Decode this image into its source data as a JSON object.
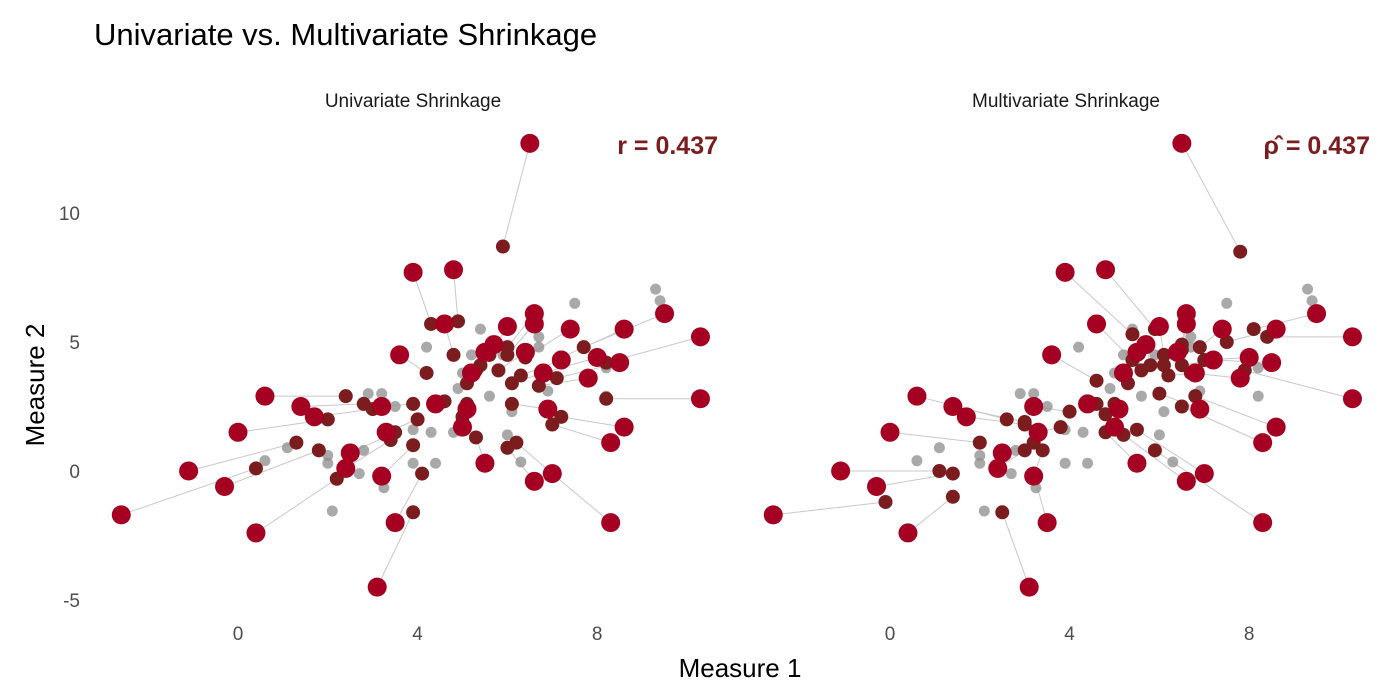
{
  "chart_data": {
    "type": "scatter",
    "title": "Univariate vs. Multivariate Shrinkage",
    "xlabel": "Measure 1",
    "ylabel": "Measure 2",
    "xlim": [
      -2.8,
      10.6
    ],
    "ylim": [
      -5.6,
      13.2
    ],
    "x_ticks": [
      "0",
      "4",
      "8"
    ],
    "x_tick_values": [
      0,
      4,
      8
    ],
    "y_ticks": [
      "10",
      "5",
      "0",
      "-5"
    ],
    "y_tick_values": [
      10,
      5,
      0,
      -5
    ],
    "grid": false,
    "colors": {
      "observed": "#A50021",
      "shrunk": "#7B1C1F",
      "true": "#8C8C8C",
      "segment": "#C8C8C8",
      "annotation": "#7B1C1F"
    },
    "true_points": [
      [
        9.3,
        7.05
      ],
      [
        9.4,
        6.6
      ],
      [
        7.5,
        6.5
      ],
      [
        6.7,
        4.8
      ],
      [
        6.7,
        5.2
      ],
      [
        4.2,
        4.8
      ],
      [
        4.3,
        1.5
      ],
      [
        3.9,
        0.3
      ],
      [
        4.4,
        0.3
      ],
      [
        3.2,
        3.0
      ],
      [
        2.9,
        3.0
      ],
      [
        1.1,
        0.9
      ],
      [
        0.6,
        0.4
      ],
      [
        2.0,
        0.3
      ],
      [
        2.1,
        -1.55
      ],
      [
        3.25,
        -0.65
      ],
      [
        2.7,
        -0.1
      ],
      [
        3.9,
        1.6
      ],
      [
        4.8,
        1.5
      ],
      [
        5.2,
        4.5
      ],
      [
        5.0,
        3.8
      ],
      [
        5.6,
        2.9
      ],
      [
        6.0,
        1.4
      ],
      [
        6.3,
        0.35
      ],
      [
        6.1,
        2.3
      ],
      [
        6.9,
        3.1
      ],
      [
        8.2,
        4.0
      ],
      [
        8.2,
        2.9
      ],
      [
        4.9,
        3.2
      ],
      [
        5.9,
        4.5
      ],
      [
        6.8,
        3.9
      ],
      [
        3.5,
        2.5
      ],
      [
        2.8,
        0.8
      ],
      [
        2.0,
        0.6
      ],
      [
        5.4,
        5.5
      ]
    ],
    "observed": [
      [
        6.5,
        12.7
      ],
      [
        3.9,
        7.7
      ],
      [
        4.8,
        7.8
      ],
      [
        3.6,
        4.5
      ],
      [
        4.6,
        5.7
      ],
      [
        0.6,
        2.9
      ],
      [
        1.4,
        2.5
      ],
      [
        1.7,
        2.1
      ],
      [
        0.0,
        1.5
      ],
      [
        -1.1,
        0.0
      ],
      [
        -0.3,
        -0.6
      ],
      [
        -2.6,
        -1.7
      ],
      [
        0.4,
        -2.4
      ],
      [
        3.1,
        -4.5
      ],
      [
        3.5,
        -2.0
      ],
      [
        3.2,
        -0.2
      ],
      [
        2.4,
        0.1
      ],
      [
        2.5,
        0.7
      ],
      [
        3.2,
        2.5
      ],
      [
        3.3,
        1.5
      ],
      [
        4.4,
        2.6
      ],
      [
        5.1,
        2.4
      ],
      [
        5.0,
        1.7
      ],
      [
        5.5,
        0.3
      ],
      [
        5.2,
        3.8
      ],
      [
        5.5,
        4.6
      ],
      [
        5.7,
        4.9
      ],
      [
        6.0,
        5.6
      ],
      [
        6.6,
        6.1
      ],
      [
        6.6,
        5.7
      ],
      [
        6.4,
        4.6
      ],
      [
        6.8,
        3.8
      ],
      [
        7.2,
        4.3
      ],
      [
        6.9,
        2.4
      ],
      [
        7.0,
        -0.1
      ],
      [
        6.6,
        -0.4
      ],
      [
        7.4,
        5.5
      ],
      [
        7.8,
        3.6
      ],
      [
        8.0,
        4.4
      ],
      [
        8.5,
        4.2
      ],
      [
        8.6,
        5.5
      ],
      [
        9.5,
        6.1
      ],
      [
        10.3,
        5.2
      ],
      [
        10.3,
        2.8
      ],
      [
        8.6,
        1.7
      ],
      [
        8.3,
        1.1
      ],
      [
        8.3,
        -2.0
      ]
    ],
    "panels": [
      {
        "name": "Univariate Shrinkage",
        "annotation": "r = 0.437",
        "shrunk": [
          [
            5.9,
            8.7
          ],
          [
            4.3,
            5.7
          ],
          [
            4.9,
            5.8
          ],
          [
            4.2,
            3.8
          ],
          [
            4.8,
            4.5
          ],
          [
            2.4,
            2.9
          ],
          [
            2.8,
            2.6
          ],
          [
            3.0,
            2.4
          ],
          [
            2.0,
            2.0
          ],
          [
            1.3,
            1.1
          ],
          [
            1.8,
            0.8
          ],
          [
            0.4,
            0.1
          ],
          [
            2.2,
            -0.3
          ],
          [
            3.9,
            -1.6
          ],
          [
            4.1,
            -0.1
          ],
          [
            3.9,
            1.0
          ],
          [
            3.4,
            1.2
          ],
          [
            3.5,
            1.5
          ],
          [
            3.9,
            2.6
          ],
          [
            4.0,
            2.0
          ],
          [
            4.6,
            2.7
          ],
          [
            5.1,
            2.6
          ],
          [
            5.0,
            2.1
          ],
          [
            5.3,
            1.3
          ],
          [
            5.1,
            3.4
          ],
          [
            5.3,
            3.9
          ],
          [
            5.4,
            4.1
          ],
          [
            5.6,
            4.5
          ],
          [
            6.0,
            4.8
          ],
          [
            6.0,
            4.5
          ],
          [
            5.8,
            3.9
          ],
          [
            6.1,
            3.4
          ],
          [
            6.3,
            3.7
          ],
          [
            6.1,
            2.6
          ],
          [
            6.2,
            1.1
          ],
          [
            6.0,
            0.9
          ],
          [
            6.4,
            4.4
          ],
          [
            6.7,
            3.3
          ],
          [
            6.8,
            3.8
          ],
          [
            7.1,
            3.6
          ],
          [
            7.2,
            4.4
          ],
          [
            7.7,
            4.8
          ],
          [
            8.2,
            4.2
          ],
          [
            8.2,
            2.8
          ],
          [
            7.2,
            2.1
          ],
          [
            7.0,
            1.8
          ],
          [
            7.0,
            -0.1
          ]
        ]
      },
      {
        "name": "Multivariate Shrinkage",
        "annotation": "ρ̂ = 0.437",
        "shrunk": [
          [
            7.8,
            8.5
          ],
          [
            5.4,
            5.3
          ],
          [
            5.9,
            5.5
          ],
          [
            4.6,
            3.5
          ],
          [
            5.4,
            4.3
          ],
          [
            2.6,
            2.0
          ],
          [
            3.0,
            1.9
          ],
          [
            3.0,
            1.8
          ],
          [
            2.0,
            1.1
          ],
          [
            1.1,
            0.0
          ],
          [
            1.4,
            -0.1
          ],
          [
            -0.1,
            -1.2
          ],
          [
            1.4,
            -1.0
          ],
          [
            2.5,
            -1.6
          ],
          [
            3.2,
            -0.1
          ],
          [
            3.4,
            0.8
          ],
          [
            3.0,
            0.8
          ],
          [
            3.2,
            1.1
          ],
          [
            4.0,
            2.3
          ],
          [
            3.8,
            1.7
          ],
          [
            4.6,
            2.6
          ],
          [
            5.0,
            2.6
          ],
          [
            4.8,
            2.2
          ],
          [
            4.8,
            1.5
          ],
          [
            5.3,
            3.4
          ],
          [
            5.6,
            3.9
          ],
          [
            5.8,
            4.1
          ],
          [
            6.1,
            4.5
          ],
          [
            6.5,
            4.9
          ],
          [
            6.5,
            4.7
          ],
          [
            6.1,
            4.1
          ],
          [
            6.2,
            3.7
          ],
          [
            6.5,
            4.1
          ],
          [
            6.0,
            3.0
          ],
          [
            5.5,
            1.6
          ],
          [
            5.2,
            1.4
          ],
          [
            6.9,
            4.8
          ],
          [
            6.7,
            3.8
          ],
          [
            7.0,
            4.3
          ],
          [
            7.2,
            4.3
          ],
          [
            7.5,
            5.0
          ],
          [
            8.1,
            5.5
          ],
          [
            8.4,
            5.2
          ],
          [
            7.9,
            3.9
          ],
          [
            6.8,
            2.9
          ],
          [
            6.5,
            2.5
          ],
          [
            5.9,
            0.8
          ]
        ]
      }
    ]
  }
}
